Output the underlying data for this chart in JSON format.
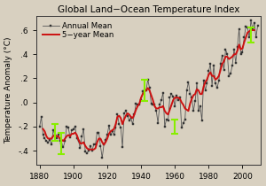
{
  "title": "Global Land−Ocean Temperature Index",
  "xlabel": "",
  "ylabel": "Temperature Anomaly (°C)",
  "xlim": [
    1878,
    2011
  ],
  "ylim": [
    -0.52,
    0.72
  ],
  "yticks": [
    -0.4,
    -0.2,
    0.0,
    0.2,
    0.4,
    0.6
  ],
  "ytick_labels": [
    "-.4",
    "-.2",
    ".0",
    ".2",
    ".4",
    ".6"
  ],
  "xticks": [
    1880,
    1900,
    1920,
    1940,
    1960,
    1980,
    2000
  ],
  "annual_line_color": "#555555",
  "annual_marker_color": "#333333",
  "five_year_color": "#cc1111",
  "error_bar_color": "#88ee00",
  "bg_color": "#d8d0c0",
  "legend_loc": "upper left",
  "annual_years": [
    1880,
    1881,
    1882,
    1883,
    1884,
    1885,
    1886,
    1887,
    1888,
    1889,
    1890,
    1891,
    1892,
    1893,
    1894,
    1895,
    1896,
    1897,
    1898,
    1899,
    1900,
    1901,
    1902,
    1903,
    1904,
    1905,
    1906,
    1907,
    1908,
    1909,
    1910,
    1911,
    1912,
    1913,
    1914,
    1915,
    1916,
    1917,
    1918,
    1919,
    1920,
    1921,
    1922,
    1923,
    1924,
    1925,
    1926,
    1927,
    1928,
    1929,
    1930,
    1931,
    1932,
    1933,
    1934,
    1935,
    1936,
    1937,
    1938,
    1939,
    1940,
    1941,
    1942,
    1943,
    1944,
    1945,
    1946,
    1947,
    1948,
    1949,
    1950,
    1951,
    1952,
    1953,
    1954,
    1955,
    1956,
    1957,
    1958,
    1959,
    1960,
    1961,
    1962,
    1963,
    1964,
    1965,
    1966,
    1967,
    1968,
    1969,
    1970,
    1971,
    1972,
    1973,
    1974,
    1975,
    1976,
    1977,
    1978,
    1979,
    1980,
    1981,
    1982,
    1983,
    1984,
    1985,
    1986,
    1987,
    1988,
    1989,
    1990,
    1991,
    1992,
    1993,
    1994,
    1995,
    1996,
    1997,
    1998,
    1999,
    2000,
    2001,
    2002,
    2003,
    2004,
    2005,
    2006,
    2007,
    2008,
    2009
  ],
  "annual_vals": [
    -0.2,
    -0.12,
    -0.27,
    -0.3,
    -0.32,
    -0.33,
    -0.31,
    -0.35,
    -0.23,
    -0.27,
    -0.3,
    -0.27,
    -0.32,
    -0.34,
    -0.37,
    -0.32,
    -0.2,
    -0.21,
    -0.29,
    -0.23,
    -0.22,
    -0.2,
    -0.3,
    -0.32,
    -0.38,
    -0.28,
    -0.22,
    -0.41,
    -0.42,
    -0.4,
    -0.36,
    -0.4,
    -0.35,
    -0.35,
    -0.25,
    -0.25,
    -0.36,
    -0.46,
    -0.35,
    -0.31,
    -0.27,
    -0.19,
    -0.27,
    -0.24,
    -0.27,
    -0.21,
    -0.1,
    -0.18,
    -0.21,
    -0.37,
    -0.09,
    -0.07,
    -0.11,
    -0.15,
    -0.13,
    -0.18,
    -0.1,
    -0.01,
    -0.02,
    -0.02,
    0.02,
    0.09,
    0.1,
    0.1,
    0.19,
    0.12,
    -0.01,
    -0.02,
    -0.02,
    -0.07,
    -0.17,
    -0.02,
    0.02,
    0.08,
    -0.2,
    -0.14,
    -0.15,
    0.04,
    0.07,
    0.05,
    -0.03,
    0.06,
    0.02,
    0.04,
    -0.21,
    -0.17,
    -0.14,
    0.1,
    0.17,
    0.07,
    0.04,
    -0.07,
    0.01,
    0.16,
    -0.07,
    -0.03,
    -0.15,
    0.18,
    0.1,
    0.16,
    0.26,
    0.32,
    0.14,
    0.31,
    0.16,
    0.12,
    0.18,
    0.32,
    0.39,
    0.27,
    0.44,
    0.4,
    0.22,
    0.24,
    0.31,
    0.44,
    0.33,
    0.46,
    0.61,
    0.4,
    0.42,
    0.54,
    0.63,
    0.62,
    0.54,
    0.68,
    0.61,
    0.66,
    0.54,
    0.64
  ],
  "five_year_years": [
    1882,
    1883,
    1884,
    1885,
    1886,
    1887,
    1888,
    1889,
    1890,
    1891,
    1892,
    1893,
    1894,
    1895,
    1896,
    1897,
    1898,
    1899,
    1900,
    1901,
    1902,
    1903,
    1904,
    1905,
    1906,
    1907,
    1908,
    1909,
    1910,
    1911,
    1912,
    1913,
    1914,
    1915,
    1916,
    1917,
    1918,
    1919,
    1920,
    1921,
    1922,
    1923,
    1924,
    1925,
    1926,
    1927,
    1928,
    1929,
    1930,
    1931,
    1932,
    1933,
    1934,
    1935,
    1936,
    1937,
    1938,
    1939,
    1940,
    1941,
    1942,
    1943,
    1944,
    1945,
    1946,
    1947,
    1948,
    1949,
    1950,
    1951,
    1952,
    1953,
    1954,
    1955,
    1956,
    1957,
    1958,
    1959,
    1960,
    1961,
    1962,
    1963,
    1964,
    1965,
    1966,
    1967,
    1968,
    1969,
    1970,
    1971,
    1972,
    1973,
    1974,
    1975,
    1976,
    1977,
    1978,
    1979,
    1980,
    1981,
    1982,
    1983,
    1984,
    1985,
    1986,
    1987,
    1988,
    1989,
    1990,
    1991,
    1992,
    1993,
    1994,
    1995,
    1996,
    1997,
    1998,
    1999,
    2000,
    2001,
    2002,
    2003,
    2004,
    2005,
    2006,
    2007
  ],
  "five_year_vals": [
    -0.22,
    -0.24,
    -0.28,
    -0.3,
    -0.3,
    -0.3,
    -0.28,
    -0.27,
    -0.28,
    -0.28,
    -0.3,
    -0.31,
    -0.32,
    -0.3,
    -0.28,
    -0.27,
    -0.28,
    -0.26,
    -0.26,
    -0.25,
    -0.27,
    -0.31,
    -0.34,
    -0.34,
    -0.33,
    -0.36,
    -0.38,
    -0.39,
    -0.39,
    -0.39,
    -0.39,
    -0.38,
    -0.33,
    -0.3,
    -0.3,
    -0.33,
    -0.35,
    -0.33,
    -0.3,
    -0.26,
    -0.24,
    -0.23,
    -0.22,
    -0.18,
    -0.12,
    -0.11,
    -0.13,
    -0.18,
    -0.14,
    -0.11,
    -0.09,
    -0.1,
    -0.12,
    -0.13,
    -0.1,
    -0.06,
    -0.03,
    -0.01,
    0.04,
    0.07,
    0.09,
    0.1,
    0.12,
    0.1,
    0.06,
    0.02,
    -0.03,
    -0.05,
    -0.05,
    -0.04,
    -0.04,
    -0.03,
    -0.07,
    -0.09,
    -0.1,
    -0.06,
    -0.02,
    0.02,
    0.04,
    0.04,
    0.04,
    0.03,
    -0.0,
    -0.02,
    -0.05,
    -0.06,
    -0.07,
    -0.01,
    0.03,
    0.06,
    0.07,
    0.11,
    0.1,
    0.07,
    0.07,
    0.13,
    0.17,
    0.19,
    0.23,
    0.25,
    0.22,
    0.22,
    0.19,
    0.2,
    0.22,
    0.27,
    0.32,
    0.34,
    0.38,
    0.38,
    0.36,
    0.37,
    0.38,
    0.4,
    0.4,
    0.43,
    0.48,
    0.44,
    0.45,
    0.5,
    0.54,
    0.58,
    0.59,
    0.6,
    0.6,
    0.6
  ],
  "error_bar_positions": [
    1889,
    1893,
    1942,
    1960,
    2005
  ],
  "error_bar_vals": [
    -0.25,
    -0.34,
    0.1,
    -0.2,
    0.56
  ],
  "error_bar_errs": [
    0.07,
    0.09,
    0.09,
    0.06,
    0.06
  ]
}
